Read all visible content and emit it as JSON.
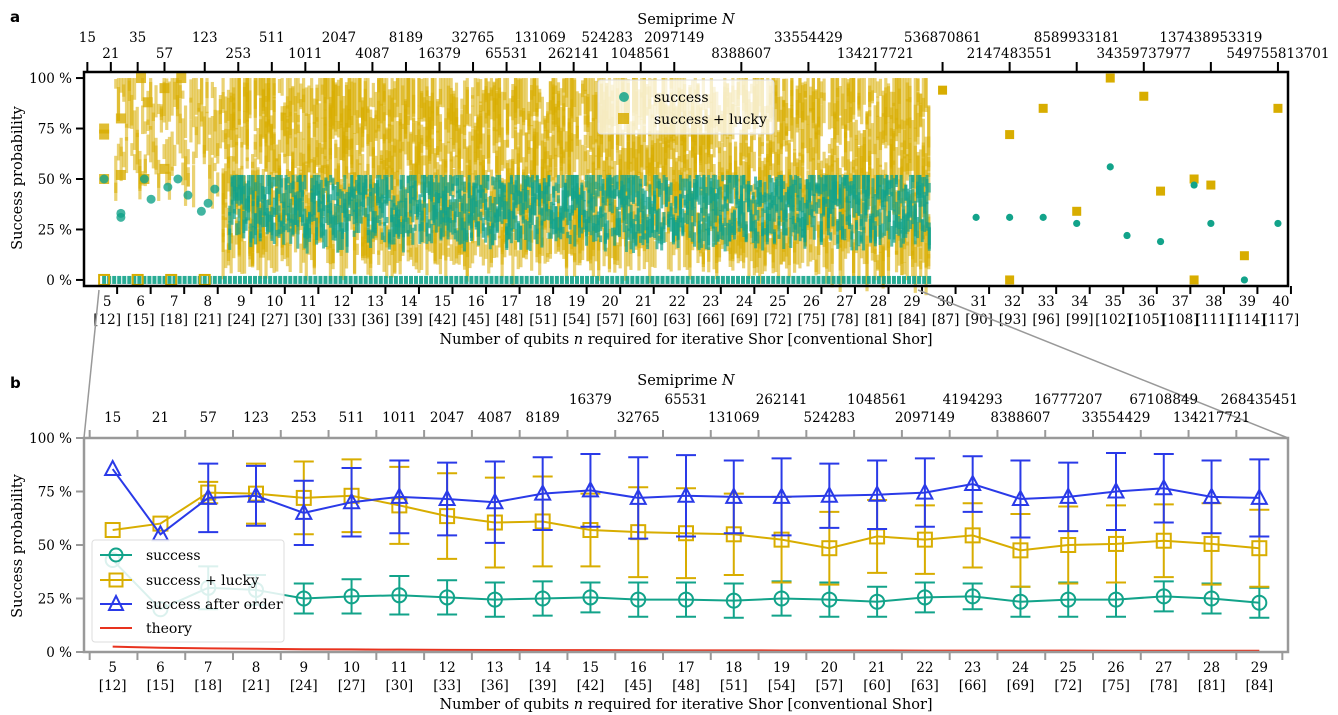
{
  "panel_a": {
    "letter": "a",
    "top_axis_label": "Semiprime N",
    "x_label": "Number of qubits n required for iterative Shor [conventional Shor]",
    "y_label": "Success probability",
    "legend": {
      "success": "success",
      "success_lucky": "success + lucky"
    }
  },
  "panel_b": {
    "letter": "b",
    "top_axis_label": "Semiprime N",
    "x_label": "Number of qubits n required for iterative Shor [conventional Shor]",
    "y_label": "Success probability",
    "legend": {
      "success": "success",
      "success_lucky": "success + lucky",
      "success_order": "success after order",
      "theory": "theory"
    }
  },
  "colors": {
    "success": "#12a38a",
    "success_lucky": "#d8ad00",
    "success_order": "#2a3ae8",
    "theory": "#e8321e",
    "frame_b": "#999999"
  },
  "chart_data": [
    {
      "type": "scatter",
      "panel": "a",
      "title": "",
      "x_tick_labels_qubits": [
        "5",
        "6",
        "7",
        "8",
        "9",
        "10",
        "11",
        "12",
        "13",
        "14",
        "15",
        "16",
        "17",
        "18",
        "19",
        "20",
        "21",
        "22",
        "23",
        "24",
        "25",
        "26",
        "27",
        "28",
        "29",
        "30",
        "31",
        "32",
        "33",
        "34",
        "35",
        "36",
        "37",
        "38",
        "39",
        "40"
      ],
      "x_tick_labels_conventional": [
        "[12]",
        "[15]",
        "[18]",
        "[21]",
        "[24]",
        "[27]",
        "[30]",
        "[33]",
        "[36]",
        "[39]",
        "[42]",
        "[45]",
        "[48]",
        "[51]",
        "[54]",
        "[57]",
        "[60]",
        "[63]",
        "[66]",
        "[69]",
        "[72]",
        "[75]",
        "[78]",
        "[81]",
        "[84]",
        "[87]",
        "[90]",
        "[93]",
        "[96]",
        "[99]",
        "[102]",
        "[105]",
        "[108]",
        "[111]",
        "[114]",
        "[117]"
      ],
      "top_ticks": [
        {
          "label": "15",
          "n": 4.5,
          "row": 0
        },
        {
          "label": "21",
          "n": 5.2,
          "row": 1
        },
        {
          "label": "35",
          "n": 6.0,
          "row": 0
        },
        {
          "label": "57",
          "n": 6.8,
          "row": 1
        },
        {
          "label": "123",
          "n": 8.0,
          "row": 0
        },
        {
          "label": "253",
          "n": 9.0,
          "row": 1
        },
        {
          "label": "511",
          "n": 10.0,
          "row": 0
        },
        {
          "label": "1011",
          "n": 11.0,
          "row": 1
        },
        {
          "label": "2047",
          "n": 12.0,
          "row": 0
        },
        {
          "label": "4087",
          "n": 13.0,
          "row": 1
        },
        {
          "label": "8189",
          "n": 14.0,
          "row": 0
        },
        {
          "label": "16379",
          "n": 15.0,
          "row": 1
        },
        {
          "label": "32765",
          "n": 16.0,
          "row": 0
        },
        {
          "label": "65531",
          "n": 17.0,
          "row": 1
        },
        {
          "label": "131069",
          "n": 18.0,
          "row": 0
        },
        {
          "label": "262141",
          "n": 19.0,
          "row": 1
        },
        {
          "label": "524283",
          "n": 20.0,
          "row": 0
        },
        {
          "label": "1048561",
          "n": 21.0,
          "row": 1
        },
        {
          "label": "2097149",
          "n": 22.0,
          "row": 0
        },
        {
          "label": "8388607",
          "n": 24.0,
          "row": 1
        },
        {
          "label": "33554429",
          "n": 26.0,
          "row": 0
        },
        {
          "label": "134217721",
          "n": 28.0,
          "row": 1
        },
        {
          "label": "536870861",
          "n": 30.0,
          "row": 0
        },
        {
          "label": "2147483551",
          "n": 32.0,
          "row": 1
        },
        {
          "label": "8589933181",
          "n": 34.0,
          "row": 0
        },
        {
          "label": "34359737977",
          "n": 36.0,
          "row": 1
        },
        {
          "label": "137438953319",
          "n": 38.0,
          "row": 0
        },
        {
          "label": "549755813701",
          "n": 40.0,
          "row": 1
        }
      ],
      "y_ticks": [
        "0 %",
        "25 %",
        "50 %",
        "75 %",
        "100 %"
      ],
      "xlim": [
        4.4,
        40.3
      ],
      "ylim": [
        -3,
        103
      ],
      "dense_region_qubits": [
        5,
        29.6
      ],
      "sparse_points": {
        "success": [
          [
            31,
            31
          ],
          [
            32,
            31
          ],
          [
            33,
            31
          ],
          [
            34,
            28
          ],
          [
            35,
            56
          ],
          [
            35.5,
            22
          ],
          [
            36.5,
            19
          ],
          [
            37.5,
            47
          ],
          [
            38,
            28
          ],
          [
            39,
            0
          ],
          [
            40,
            28
          ]
        ],
        "success_lucky": [
          [
            30,
            94
          ],
          [
            32,
            72
          ],
          [
            32,
            0
          ],
          [
            33,
            85
          ],
          [
            34,
            34
          ],
          [
            35,
            100
          ],
          [
            36,
            91
          ],
          [
            36.5,
            44
          ],
          [
            37.5,
            50
          ],
          [
            37.5,
            0
          ],
          [
            38,
            47
          ],
          [
            39,
            12
          ],
          [
            40,
            85
          ]
        ]
      }
    },
    {
      "type": "line",
      "panel": "b",
      "title": "",
      "x": [
        5,
        6,
        7,
        8,
        9,
        10,
        11,
        12,
        13,
        14,
        15,
        16,
        17,
        18,
        19,
        20,
        21,
        22,
        23,
        24,
        25,
        26,
        27,
        28,
        29
      ],
      "x_tick_labels_conventional": [
        "[12]",
        "[15]",
        "[18]",
        "[21]",
        "[24]",
        "[27]",
        "[30]",
        "[33]",
        "[36]",
        "[39]",
        "[42]",
        "[45]",
        "[48]",
        "[51]",
        "[54]",
        "[57]",
        "[60]",
        "[63]",
        "[66]",
        "[69]",
        "[72]",
        "[75]",
        "[78]",
        "[81]",
        "[84]"
      ],
      "top_ticks": [
        {
          "label": "15",
          "n": 5,
          "row": 1
        },
        {
          "label": "21",
          "n": 6,
          "row": 1
        },
        {
          "label": "57",
          "n": 7,
          "row": 1
        },
        {
          "label": "123",
          "n": 8,
          "row": 1
        },
        {
          "label": "253",
          "n": 9,
          "row": 1
        },
        {
          "label": "511",
          "n": 10,
          "row": 1
        },
        {
          "label": "1011",
          "n": 11,
          "row": 1
        },
        {
          "label": "2047",
          "n": 12,
          "row": 1
        },
        {
          "label": "4087",
          "n": 13,
          "row": 1
        },
        {
          "label": "8189",
          "n": 14,
          "row": 1
        },
        {
          "label": "16379",
          "n": 15,
          "row": 0
        },
        {
          "label": "32765",
          "n": 16,
          "row": 1
        },
        {
          "label": "65531",
          "n": 17,
          "row": 0
        },
        {
          "label": "131069",
          "n": 18,
          "row": 1
        },
        {
          "label": "262141",
          "n": 19,
          "row": 0
        },
        {
          "label": "524283",
          "n": 20,
          "row": 1
        },
        {
          "label": "1048561",
          "n": 21,
          "row": 0
        },
        {
          "label": "2097149",
          "n": 22,
          "row": 1
        },
        {
          "label": "4194293",
          "n": 23,
          "row": 0
        },
        {
          "label": "8388607",
          "n": 24,
          "row": 1
        },
        {
          "label": "16777207",
          "n": 25,
          "row": 0
        },
        {
          "label": "33554429",
          "n": 26,
          "row": 1
        },
        {
          "label": "67108849",
          "n": 27,
          "row": 0
        },
        {
          "label": "134217721",
          "n": 28,
          "row": 1
        },
        {
          "label": "268435451",
          "n": 29,
          "row": 0
        }
      ],
      "y_ticks": [
        "0 %",
        "25 %",
        "50 %",
        "75 %",
        "100 %"
      ],
      "xlim": [
        4.4,
        29.6
      ],
      "ylim": [
        0,
        100
      ],
      "series": [
        {
          "name": "success",
          "key": "success",
          "marker": "circle",
          "values": [
            43,
            20,
            30,
            29,
            25,
            26,
            26.5,
            25.5,
            24.5,
            25,
            25.5,
            24.5,
            24.5,
            24,
            25,
            24.5,
            23.5,
            25.5,
            26,
            23.5,
            24.5,
            24.5,
            26,
            25,
            23
          ],
          "err": [
            0,
            0,
            10,
            7,
            7,
            8,
            9,
            8,
            8,
            8,
            7,
            8,
            8,
            8,
            8,
            8,
            7,
            7,
            6,
            7,
            8,
            8,
            7,
            7,
            7
          ]
        },
        {
          "name": "success + lucky",
          "key": "success_lucky",
          "marker": "square",
          "values": [
            57,
            60,
            74.5,
            74,
            72,
            73,
            68.5,
            63.5,
            60.5,
            61,
            57,
            56,
            55.5,
            55,
            52.5,
            48.5,
            54,
            52.5,
            54.5,
            47.5,
            50,
            50.5,
            52,
            50.5,
            48.5
          ],
          "err": [
            0,
            0,
            5,
            14,
            17,
            17,
            18,
            20,
            21,
            21,
            17,
            21,
            21,
            19,
            20,
            17,
            17,
            16,
            15,
            17,
            18,
            18,
            17,
            19,
            18
          ]
        },
        {
          "name": "success after order",
          "key": "success_order",
          "marker": "triangle",
          "values": [
            85.5,
            55,
            72,
            73,
            65,
            70,
            72.5,
            71.5,
            70,
            74,
            75.5,
            72,
            73,
            72.5,
            72.5,
            73,
            73.5,
            74.5,
            78.5,
            71.5,
            72.5,
            75,
            76.5,
            72.5,
            72
          ],
          "err": [
            0,
            0,
            16,
            14,
            15,
            16,
            17,
            17,
            19,
            17,
            17,
            19,
            19,
            17,
            18,
            15,
            16,
            16,
            13,
            18,
            16,
            18,
            16,
            17,
            18
          ]
        },
        {
          "name": "theory",
          "key": "theory",
          "marker": "none",
          "values": [
            2.5,
            2.0,
            1.7,
            1.5,
            1.3,
            1.2,
            1.1,
            1.0,
            0.95,
            0.9,
            0.85,
            0.8,
            0.78,
            0.75,
            0.72,
            0.7,
            0.68,
            0.66,
            0.65,
            0.63,
            0.62,
            0.61,
            0.6,
            0.59,
            0.58
          ],
          "err": []
        }
      ]
    }
  ]
}
